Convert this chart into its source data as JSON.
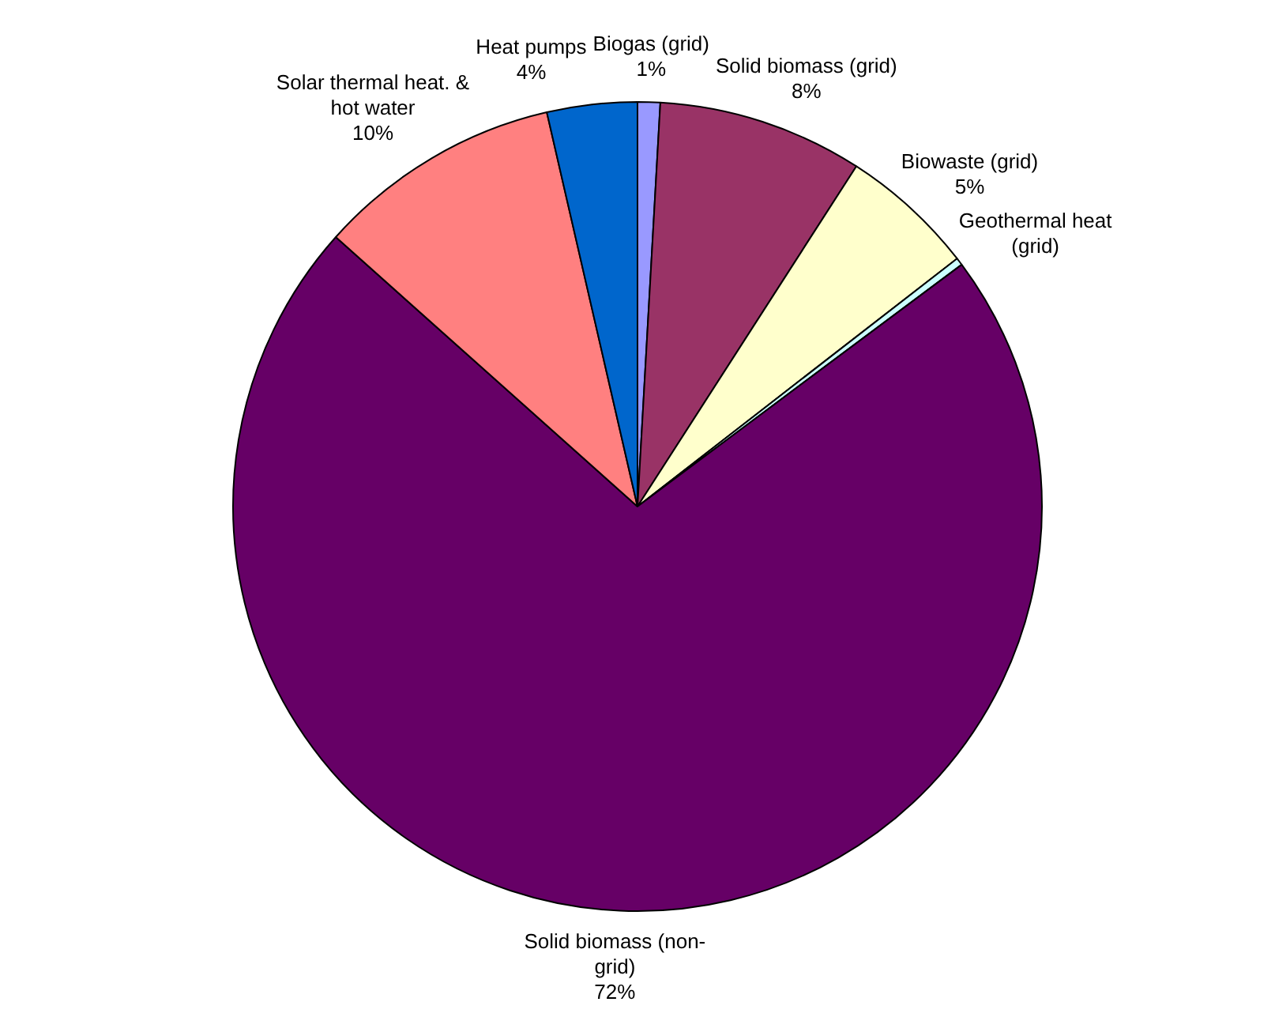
{
  "chart_data": {
    "type": "pie",
    "categories": [
      "Biogas (grid)",
      "Solid biomass (grid)",
      "Biowaste (grid)",
      "Geothermal heat (grid)",
      "Solid biomass (non-grid)",
      "Solar thermal heat. & hot water",
      "Heat pumps"
    ],
    "values": [
      0.9,
      8.2,
      5.4,
      0.3,
      71.8,
      9.8,
      3.6
    ],
    "value_labels": [
      "1%",
      "8%",
      "5%",
      null,
      "72%",
      "10%",
      "4%"
    ],
    "colors": [
      "#9999ff",
      "#993366",
      "#ffffcc",
      "#ccffff",
      "#660066",
      "#ff8080",
      "#0066cc"
    ],
    "legend": false
  }
}
